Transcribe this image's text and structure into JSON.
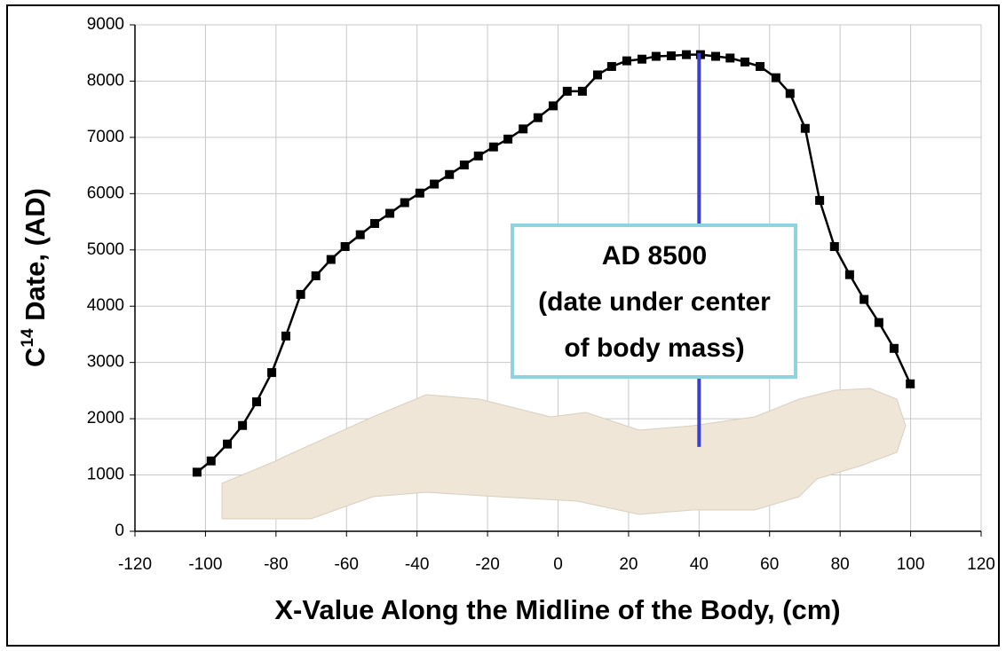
{
  "chart_data": {
    "type": "line",
    "x_label": "X-Value Along the Midline of the Body, (cm)",
    "y_label": {
      "base": "C",
      "sup": "14",
      "rest": " Date, (AD)"
    },
    "xlim": [
      -120,
      120
    ],
    "xticks": [
      -120,
      -100,
      -80,
      -60,
      -40,
      -20,
      0,
      20,
      40,
      60,
      80,
      100,
      120
    ],
    "ylim": [
      0,
      9000
    ],
    "yticks": [
      0,
      1000,
      2000,
      3000,
      4000,
      5000,
      6000,
      7000,
      8000,
      9000
    ],
    "grid": true,
    "series": [
      {
        "color": "#000000",
        "x": [
          -102.4,
          -98.4,
          -93.8,
          -89.5,
          -85.5,
          -81.2,
          -77.2,
          -73,
          -68.7,
          -64.4,
          -60.4,
          -56.1,
          -52,
          -47.7,
          -43.5,
          -39.2,
          -35.1,
          -30.8,
          -26.6,
          -22.6,
          -18.3,
          -14.2,
          -9.9,
          -5.7,
          -1.4,
          2.6,
          6.9,
          11.2,
          15.2,
          19.5,
          23.8,
          27.8,
          32.1,
          36.4,
          40.4,
          44.7,
          48.8,
          53,
          57.3,
          61.8,
          65.8,
          70.1,
          74.2,
          78.4,
          82.7,
          86.8,
          91,
          95.3,
          99.9
        ],
        "values": [
          1050,
          1250,
          1550,
          1880,
          2300,
          2820,
          3470,
          4210,
          4540,
          4830,
          5060,
          5270,
          5470,
          5650,
          5840,
          6010,
          6170,
          6340,
          6510,
          6670,
          6830,
          6970,
          7150,
          7350,
          7560,
          7820,
          7820,
          8110,
          8260,
          8360,
          8390,
          8440,
          8450,
          8470,
          8470,
          8440,
          8410,
          8340,
          8260,
          8060,
          7780,
          7160,
          5880,
          5060,
          4560,
          4120,
          3710,
          3250,
          2620
        ]
      }
    ],
    "reference_line": {
      "x": 40,
      "y_top": 8500,
      "y_bottom": 1500,
      "color": "#3b3fcf"
    },
    "annotation": {
      "lines": [
        "AD 8500",
        "(date under center",
        "of body mass)"
      ],
      "border_color": "#8fd3e0"
    }
  }
}
